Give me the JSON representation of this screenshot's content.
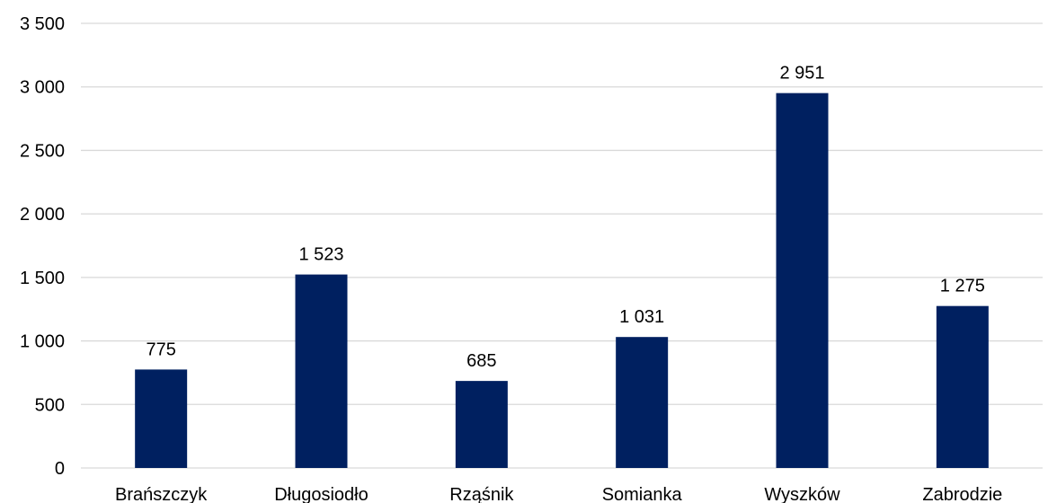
{
  "chart_data": {
    "type": "bar",
    "categories": [
      "Brańszczyk",
      "Długosiodło",
      "Rząśnik",
      "Somianka",
      "Wyszków",
      "Zabrodzie"
    ],
    "values": [
      775,
      1523,
      685,
      1031,
      2951,
      1275
    ],
    "value_labels": [
      "775",
      "1 523",
      "685",
      "1 031",
      "2 951",
      "1 275"
    ],
    "ylim": [
      0,
      3500
    ],
    "yticks": [
      0,
      500,
      1000,
      1500,
      2000,
      2500,
      3000,
      3500
    ],
    "ytick_labels": [
      "0",
      "500",
      "1 000",
      "1 500",
      "2 000",
      "2 500",
      "3 000",
      "3 500"
    ],
    "grid": true,
    "bar_color": "#002060",
    "title": "",
    "xlabel": "",
    "ylabel": ""
  }
}
